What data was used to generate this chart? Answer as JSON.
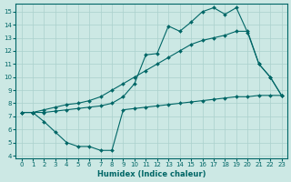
{
  "xlabel": "Humidex (Indice chaleur)",
  "bg_color": "#cce8e4",
  "grid_color": "#aad0cc",
  "line_color": "#006666",
  "xlim": [
    -0.5,
    23.5
  ],
  "ylim": [
    3.8,
    15.6
  ],
  "yticks": [
    4,
    5,
    6,
    7,
    8,
    9,
    10,
    11,
    12,
    13,
    14,
    15
  ],
  "xticks": [
    0,
    1,
    2,
    3,
    4,
    5,
    6,
    7,
    8,
    9,
    10,
    11,
    12,
    13,
    14,
    15,
    16,
    17,
    18,
    19,
    20,
    21,
    22,
    23
  ],
  "line1_x": [
    0,
    1,
    2,
    3,
    4,
    5,
    6,
    7,
    8,
    9,
    10,
    11,
    12,
    13,
    14,
    15,
    16,
    17,
    18,
    19,
    20,
    21,
    22,
    23
  ],
  "line1_y": [
    7.3,
    7.3,
    6.6,
    5.8,
    5.0,
    4.7,
    4.7,
    4.4,
    4.4,
    7.5,
    7.6,
    7.7,
    7.8,
    7.9,
    8.0,
    8.1,
    8.2,
    8.3,
    8.4,
    8.5,
    8.5,
    8.6,
    8.6,
    8.6
  ],
  "line2_x": [
    0,
    1,
    2,
    3,
    4,
    5,
    6,
    7,
    8,
    9,
    10,
    11,
    12,
    13,
    14,
    15,
    16,
    17,
    18,
    19,
    20,
    21,
    22,
    23
  ],
  "line2_y": [
    7.3,
    7.3,
    7.5,
    7.7,
    7.9,
    8.0,
    8.2,
    8.5,
    9.0,
    9.5,
    10.0,
    10.5,
    11.0,
    11.5,
    12.0,
    12.5,
    12.8,
    13.0,
    13.2,
    13.5,
    13.5,
    11.0,
    10.0,
    8.6
  ],
  "line3_x": [
    0,
    1,
    2,
    3,
    4,
    5,
    6,
    7,
    8,
    9,
    10,
    11,
    12,
    13,
    14,
    15,
    16,
    17,
    18,
    19,
    20,
    21,
    22,
    23
  ],
  "line3_y": [
    7.3,
    7.3,
    7.3,
    7.4,
    7.5,
    7.6,
    7.7,
    7.8,
    8.0,
    8.5,
    9.5,
    11.7,
    11.8,
    13.9,
    13.5,
    14.2,
    15.0,
    15.3,
    14.8,
    15.3,
    13.4,
    11.0,
    10.0,
    8.6
  ]
}
